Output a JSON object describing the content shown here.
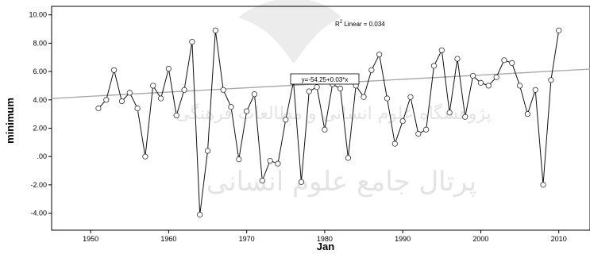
{
  "chart_data": {
    "type": "scatter",
    "xlabel": "Jan",
    "ylabel": "minimum",
    "xlim": [
      1945,
      2014
    ],
    "ylim": [
      -5.2,
      10.6
    ],
    "x_ticks": [
      1950,
      1960,
      1970,
      1980,
      1990,
      2000,
      2010
    ],
    "y_ticks": [
      10,
      8,
      6,
      4,
      2,
      0,
      -2,
      -4
    ],
    "y_tick_labels": [
      "10.00",
      "8.00",
      "6.00",
      "4.00",
      "2.00",
      ".00",
      "-2.00",
      "-4.00"
    ],
    "grid": false,
    "line_color": "#111111",
    "fit_color": "#aaaaaa",
    "series": [
      {
        "x": [
          1951,
          1952,
          1953,
          1954,
          1955,
          1956,
          1957,
          1958,
          1959,
          1960,
          1961,
          1962,
          1963,
          1964,
          1965,
          1966,
          1967,
          1968,
          1969,
          1970,
          1971,
          1972,
          1973,
          1974,
          1975,
          1976,
          1977,
          1978,
          1979,
          1980,
          1981,
          1982,
          1983,
          1984,
          1985,
          1986,
          1987,
          1988,
          1989,
          1990,
          1991,
          1992,
          1993,
          1994,
          1995,
          1996,
          1997,
          1998,
          1999,
          2000,
          2001,
          2002,
          2003,
          2004,
          2005,
          2006,
          2007,
          2008,
          2009,
          2010
        ],
        "y": [
          3.4,
          4.0,
          6.1,
          3.9,
          4.5,
          3.4,
          0.0,
          5.0,
          4.1,
          6.2,
          2.9,
          4.7,
          8.1,
          -4.1,
          0.4,
          8.9,
          4.7,
          3.5,
          -0.2,
          3.2,
          4.4,
          -1.7,
          -0.3,
          -0.5,
          2.6,
          5.3,
          -1.8,
          4.6,
          4.9,
          1.9,
          5.1,
          4.8,
          -0.1,
          5.0,
          4.2,
          6.1,
          7.2,
          4.1,
          0.9,
          2.5,
          4.2,
          1.6,
          1.9,
          6.4,
          7.5,
          3.1,
          6.9,
          2.8,
          5.7,
          5.2,
          5.0,
          5.6,
          6.8,
          6.6,
          5.0,
          3.0,
          4.7,
          -2.0,
          5.4,
          8.9
        ]
      }
    ],
    "fit_line": {
      "intercept": -54.25,
      "slope": 0.03,
      "x_range": [
        1945,
        2014
      ]
    },
    "annotations": {
      "equation": "y=-54.25+0.03*x",
      "r2_label": "R",
      "r2_sup": "2",
      "r2_rest": " Linear = 0.034"
    }
  },
  "watermark": {
    "line1": "پژوهشگاه علوم انسانی و مطالعات فرهنگی",
    "line2": "پرتال جامع علوم انسانی"
  }
}
